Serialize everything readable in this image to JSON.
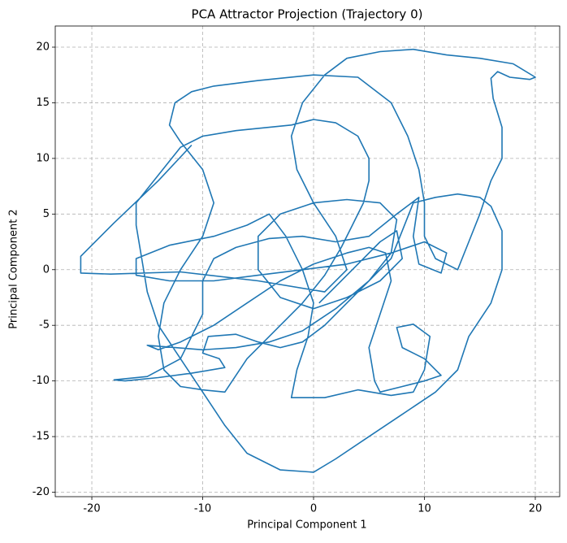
{
  "chart_data": {
    "type": "line",
    "title": "PCA Attractor Projection (Trajectory 0)",
    "x_label": "Principal Component 1",
    "y_label": "Principal Component 2",
    "xlim": [
      -23.3,
      22.2
    ],
    "ylim": [
      -20.4,
      21.9
    ],
    "xticks": [
      -20,
      -10,
      0,
      10,
      20
    ],
    "yticks": [
      -20,
      -15,
      -10,
      -5,
      0,
      5,
      10,
      15,
      20
    ],
    "grid": true,
    "series": [
      {
        "color": "#1f77b4",
        "x": [
          0.5,
          2,
          4,
          6,
          7.5,
          8,
          6,
          3,
          0,
          -3,
          -5,
          -5,
          -3,
          0,
          3,
          6,
          7.5,
          7,
          5,
          2,
          -1,
          -4,
          -7,
          -10,
          -12.5,
          -15,
          -14,
          -12,
          -9,
          -6,
          -3,
          0,
          3,
          5,
          6.5,
          7,
          6,
          5,
          5.5,
          6,
          8,
          10,
          11.5,
          10,
          8,
          7.5,
          9,
          10.5,
          10,
          9,
          7,
          4,
          1,
          -2,
          -1.5,
          -0.5,
          0,
          -1,
          -2.5,
          -4,
          -6,
          -9,
          -13,
          -16,
          -16,
          -13,
          -9,
          -5,
          -1,
          3,
          7,
          10,
          12,
          11.5,
          9.5,
          9,
          9.5,
          7.5,
          5,
          2,
          -1,
          -4,
          -7,
          -9,
          -10,
          -10,
          -11,
          -12,
          -15,
          -18,
          -17,
          -14,
          -11,
          -8,
          -8.5,
          -10,
          -9.5,
          -7,
          -5,
          -3,
          -1,
          1,
          3,
          5,
          7,
          8,
          9,
          11,
          13,
          15,
          16,
          17,
          17,
          16,
          14,
          13,
          11,
          8,
          5,
          2,
          0,
          -3,
          -6,
          -8,
          -10,
          -12,
          -14,
          -15,
          -15.5,
          -16,
          -16,
          -14,
          -12,
          -10,
          -7,
          -4,
          -2,
          0,
          2,
          4,
          5,
          5,
          4.5,
          3.5,
          2.5,
          1,
          -1,
          -3,
          -6,
          -8,
          -10,
          -12,
          -13.5,
          -14,
          -13.5,
          -12,
          -10,
          -9,
          -10,
          -12,
          -13,
          -12.5,
          -11,
          -9,
          -5,
          0,
          4,
          7,
          8.5,
          9.5,
          10,
          10,
          11,
          13,
          14,
          15,
          16,
          17,
          17,
          16.2,
          16,
          16.6,
          17.7,
          19.5,
          20,
          18,
          15,
          12,
          9,
          6,
          3,
          1,
          -1,
          -2,
          -1.5,
          0,
          2,
          3,
          1,
          -5,
          -12,
          -18.3,
          -21,
          -21,
          -18,
          -14,
          -11
        ],
        "values": [
          -3,
          -1.5,
          0.5,
          2.5,
          3.5,
          1,
          -1,
          -2.5,
          -3.5,
          -2.5,
          0,
          3,
          5,
          6,
          6.3,
          6,
          4.5,
          1.5,
          -1,
          -3.5,
          -5.5,
          -6.5,
          -7,
          -7.2,
          -7,
          -6.8,
          -7.2,
          -6.5,
          -5,
          -3,
          -1,
          0.5,
          1.5,
          2,
          1.5,
          -1,
          -4,
          -7,
          -10,
          -11,
          -10.5,
          -10,
          -9.5,
          -8,
          -7,
          -5.2,
          -4.9,
          -6,
          -9,
          -11,
          -11.3,
          -10.8,
          -11.5,
          -11.5,
          -9,
          -6,
          -3,
          0,
          3,
          5,
          4,
          3,
          2.2,
          1,
          -0.5,
          -1,
          -1,
          -0.5,
          0,
          0.5,
          1.5,
          2.5,
          1.5,
          -0.3,
          0.5,
          3,
          6.5,
          5,
          3,
          2.5,
          3,
          2.8,
          2,
          1,
          -1,
          -4,
          -6,
          -8,
          -9.6,
          -9.9,
          -10,
          -9.7,
          -9.3,
          -8.8,
          -8,
          -7.5,
          -6,
          -5.8,
          -6.5,
          -7,
          -6.5,
          -5,
          -3,
          -1,
          1,
          3.5,
          6,
          6.5,
          6.8,
          6.5,
          5.7,
          3.5,
          0,
          -3,
          -6,
          -9,
          -11,
          -13,
          -15,
          -17,
          -18.2,
          -18,
          -16.5,
          -14,
          -11,
          -8,
          -5,
          -2,
          1,
          4,
          6,
          8.5,
          11,
          12,
          12.5,
          12.8,
          13,
          13.5,
          13.2,
          12,
          10,
          8,
          6,
          4,
          2,
          -0.5,
          -3,
          -5,
          -8,
          -11,
          -10.8,
          -10.5,
          -9,
          -6,
          -3,
          0,
          3,
          6,
          9,
          11.5,
          13,
          15,
          16,
          16.5,
          17,
          17.5,
          17.3,
          15,
          12,
          9,
          6,
          3,
          1,
          0,
          2.5,
          5,
          8,
          10,
          12.8,
          15.4,
          17.2,
          17.8,
          17.3,
          17.1,
          17.3,
          18.5,
          19,
          19.3,
          19.8,
          19.6,
          19,
          17.5,
          15,
          12,
          9,
          6,
          3,
          0,
          -2,
          -1,
          -0.2,
          -0.4,
          -0.3,
          1.2,
          4.2,
          8,
          11.2
        ]
      }
    ]
  }
}
